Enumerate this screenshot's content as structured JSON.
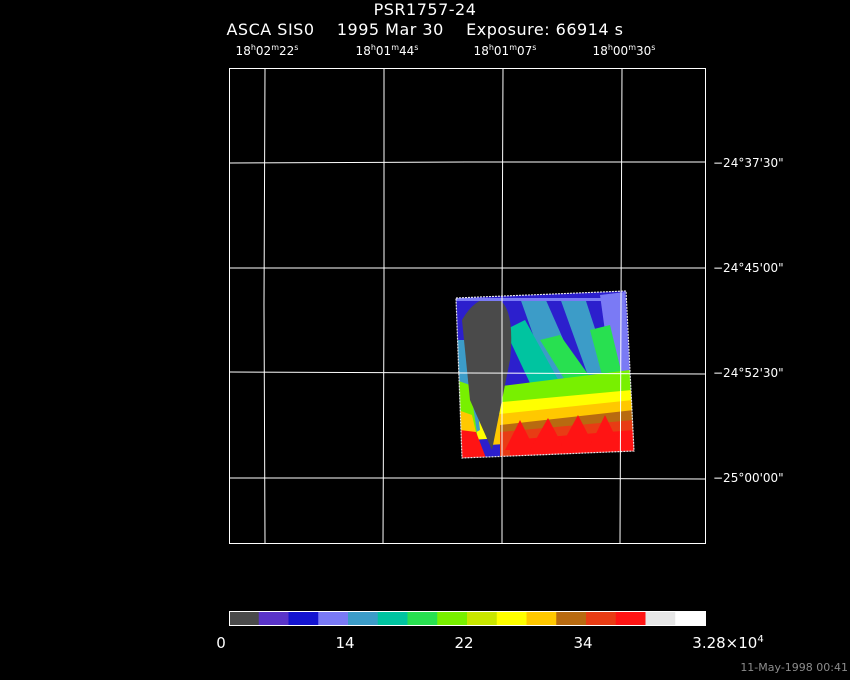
{
  "title": "PSR1757-24",
  "subtitle": "ASCA SIS0    1995 Mar 30    Exposure: 66914 s",
  "ra_labels": [
    {
      "h": "18",
      "m": "02",
      "s": "22"
    },
    {
      "h": "18",
      "m": "01",
      "s": "44"
    },
    {
      "h": "18",
      "m": "01",
      "s": "07"
    },
    {
      "h": "18",
      "m": "00",
      "s": "30"
    }
  ],
  "ra_units": {
    "h": "h",
    "m": "m",
    "s": "s"
  },
  "dec_labels": [
    "−24°37'30\"",
    "−24°45'00\"",
    "−24°52'30\"",
    "−25°00'00\""
  ],
  "colorbar": {
    "labels": [
      "0",
      "14",
      "22",
      "34"
    ],
    "max_mantissa": "3.28×10",
    "max_exponent": "4",
    "colors": [
      "#4a4a4a",
      "#5a34c8",
      "#1414d0",
      "#7a7af5",
      "#3c9cc8",
      "#00c4a0",
      "#28e050",
      "#78f000",
      "#c8e600",
      "#ffff00",
      "#ffc800",
      "#b86a10",
      "#e83c14",
      "#ff1414",
      "#e6e6e6",
      "#ffffff"
    ]
  },
  "timestamp": "11-May-1998 00:41"
}
